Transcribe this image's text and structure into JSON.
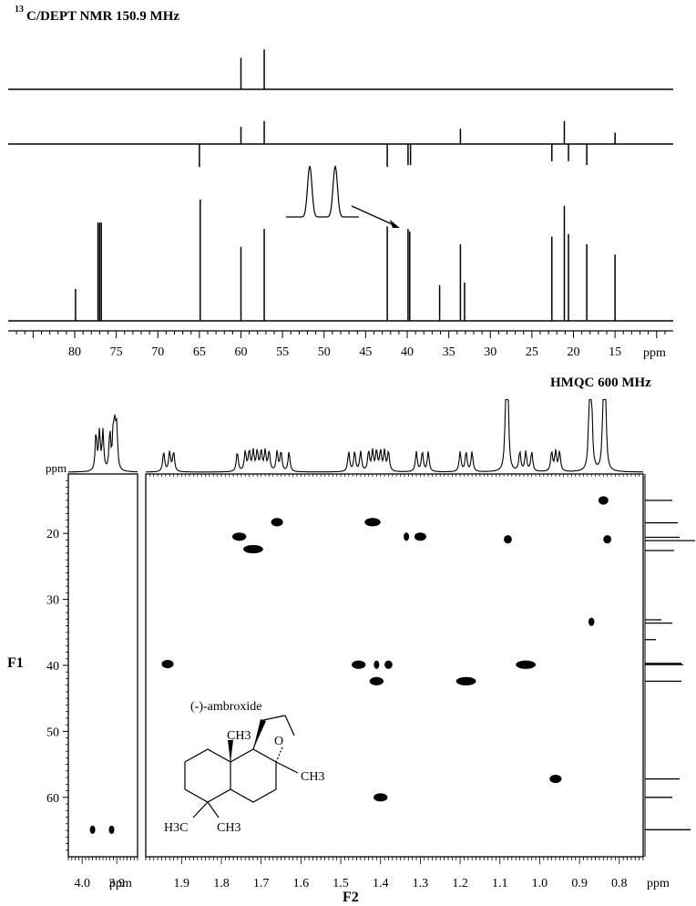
{
  "chart_data": [
    {
      "type": "line",
      "title": "C/DEPT NMR 150.9 MHz",
      "title_superscript": "13",
      "xlabel": "ppm",
      "xlim": [
        88,
        8
      ],
      "x_ticks": [
        80,
        75,
        70,
        65,
        60,
        55,
        50,
        45,
        40,
        35,
        30,
        25,
        20,
        15
      ],
      "reversed_axis": true,
      "series": [
        {
          "trace": "top",
          "peaks": [
            {
              "x": 60.0,
              "y": 0.75,
              "sign": 1
            },
            {
              "x": 57.2,
              "y": 0.95,
              "sign": 1
            }
          ]
        },
        {
          "trace": "middle",
          "peaks": [
            {
              "x": 65.0,
              "y": 0.6,
              "sign": -1
            },
            {
              "x": 60.0,
              "y": 0.45,
              "sign": 1
            },
            {
              "x": 57.2,
              "y": 0.6,
              "sign": 1
            },
            {
              "x": 42.4,
              "y": 0.6,
              "sign": -1
            },
            {
              "x": 39.9,
              "y": 0.55,
              "sign": -1
            },
            {
              "x": 39.6,
              "y": 0.55,
              "sign": -1
            },
            {
              "x": 33.6,
              "y": 0.4,
              "sign": 1
            },
            {
              "x": 22.6,
              "y": 0.45,
              "sign": -1
            },
            {
              "x": 21.1,
              "y": 0.6,
              "sign": 1
            },
            {
              "x": 20.6,
              "y": 0.45,
              "sign": -1
            },
            {
              "x": 18.4,
              "y": 0.55,
              "sign": -1
            },
            {
              "x": 15.0,
              "y": 0.3,
              "sign": 1
            }
          ]
        },
        {
          "trace": "bottom",
          "peaks": [
            {
              "x": 79.9,
              "y": 0.25
            },
            {
              "x": 77.2,
              "y": 0.77
            },
            {
              "x": 77.0,
              "y": 0.77
            },
            {
              "x": 76.8,
              "y": 0.77
            },
            {
              "x": 64.9,
              "y": 0.95
            },
            {
              "x": 60.0,
              "y": 0.58
            },
            {
              "x": 57.2,
              "y": 0.72
            },
            {
              "x": 42.4,
              "y": 0.74
            },
            {
              "x": 39.9,
              "y": 0.72
            },
            {
              "x": 39.7,
              "y": 0.7
            },
            {
              "x": 36.1,
              "y": 0.28
            },
            {
              "x": 33.6,
              "y": 0.6
            },
            {
              "x": 33.1,
              "y": 0.3
            },
            {
              "x": 22.6,
              "y": 0.66
            },
            {
              "x": 21.1,
              "y": 0.9
            },
            {
              "x": 20.6,
              "y": 0.68
            },
            {
              "x": 18.4,
              "y": 0.6
            },
            {
              "x": 15.0,
              "y": 0.52
            }
          ]
        }
      ],
      "inset": {
        "type": "expanded-doublet",
        "points_to_x": 39.8
      }
    },
    {
      "type": "heatmap",
      "title": "HMQC 600 MHz",
      "xlabel": "F2",
      "ylabel": "F1",
      "x_unit": "ppm",
      "y_unit_left_top": "ppm",
      "main_xlim": [
        1.99,
        0.74
      ],
      "main_x_ticks": [
        1.9,
        1.8,
        1.7,
        1.6,
        1.5,
        1.4,
        1.3,
        1.2,
        1.1,
        1.0,
        0.9,
        0.8
      ],
      "side_xlim": [
        4.04,
        3.84
      ],
      "side_x_ticks": [
        4.0,
        3.9
      ],
      "ylim": [
        11,
        69
      ],
      "y_ticks": [
        20,
        30,
        40,
        50,
        60
      ],
      "cross_peaks": [
        {
          "x": 0.84,
          "y": 15.0,
          "w": 0.025
        },
        {
          "x": 0.83,
          "y": 20.9,
          "w": 0.02
        },
        {
          "x": 1.08,
          "y": 20.9,
          "w": 0.02
        },
        {
          "x": 1.755,
          "y": 20.5,
          "w": 0.035
        },
        {
          "x": 1.72,
          "y": 22.4,
          "w": 0.05
        },
        {
          "x": 1.66,
          "y": 18.3,
          "w": 0.03
        },
        {
          "x": 1.42,
          "y": 18.3,
          "w": 0.04
        },
        {
          "x": 1.335,
          "y": 20.5,
          "w": 0.005
        },
        {
          "x": 1.3,
          "y": 20.5,
          "w": 0.03
        },
        {
          "x": 0.87,
          "y": 33.4,
          "w": 0.015
        },
        {
          "x": 1.935,
          "y": 39.8,
          "w": 0.03
        },
        {
          "x": 1.455,
          "y": 39.9,
          "w": 0.035
        },
        {
          "x": 1.41,
          "y": 39.9,
          "w": 0.007
        },
        {
          "x": 1.38,
          "y": 39.9,
          "w": 0.02
        },
        {
          "x": 1.035,
          "y": 39.9,
          "w": 0.05
        },
        {
          "x": 1.41,
          "y": 42.4,
          "w": 0.035
        },
        {
          "x": 1.185,
          "y": 42.4,
          "w": 0.05
        },
        {
          "x": 0.96,
          "y": 57.2,
          "w": 0.03
        },
        {
          "x": 1.4,
          "y": 60.0,
          "w": 0.035
        },
        {
          "x": 3.97,
          "y": 64.9,
          "w": 0.01,
          "panel": "side"
        },
        {
          "x": 3.915,
          "y": 64.9,
          "w": 0.01,
          "panel": "side"
        }
      ],
      "f1_projection_y": [
        15.0,
        18.4,
        20.6,
        21.1,
        22.6,
        33.1,
        33.6,
        36.1,
        39.7,
        39.9,
        42.4,
        57.2,
        60.0,
        64.9
      ],
      "f2_projection_x": [
        3.96,
        3.95,
        3.94,
        3.92,
        3.91,
        3.905,
        3.9,
        1.945,
        1.93,
        1.92,
        1.76,
        1.74,
        1.73,
        1.72,
        1.71,
        1.7,
        1.69,
        1.68,
        1.66,
        1.65,
        1.63,
        1.48,
        1.465,
        1.45,
        1.43,
        1.42,
        1.41,
        1.4,
        1.39,
        1.38,
        1.31,
        1.295,
        1.28,
        1.2,
        1.185,
        1.17,
        1.085,
        1.08,
        1.05,
        1.035,
        1.02,
        0.97,
        0.96,
        0.95,
        0.875,
        0.87,
        0.84,
        0.835
      ],
      "structure_labels": {
        "compound": "(-)-ambroxide",
        "methyl_top": "CH3",
        "methyl_right": "CH3",
        "methyl_bottom_left": "H3C",
        "methyl_bottom_right": "CH3",
        "oxygen": "O"
      }
    }
  ]
}
